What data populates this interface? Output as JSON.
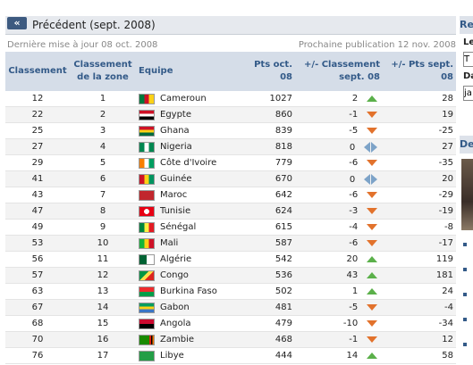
{
  "nav": {
    "prev_icon": "«",
    "prev_label": "Précédent (sept. 2008)"
  },
  "meta": {
    "updated": "Dernière mise à jour 08 oct. 2008",
    "next": "Prochaine publication 12 nov. 2008"
  },
  "headers": {
    "rank": "Classement",
    "zone_rank": "Classement de la zone",
    "team": "Equipe",
    "pts": "Pts oct. 08",
    "change": "+/- Classement sept. 08",
    "pts_change": "+/- Pts sept. 08"
  },
  "rows": [
    {
      "rank": "12",
      "zone": "1",
      "team": "Cameroun",
      "pts": "1027",
      "change": "2",
      "trend": "up",
      "pts_change": "28",
      "flag": "cm"
    },
    {
      "rank": "22",
      "zone": "2",
      "team": "Egypte",
      "pts": "860",
      "change": "-1",
      "trend": "down",
      "pts_change": "19",
      "flag": "eg"
    },
    {
      "rank": "25",
      "zone": "3",
      "team": "Ghana",
      "pts": "839",
      "change": "-5",
      "trend": "down",
      "pts_change": "-25",
      "flag": "gh"
    },
    {
      "rank": "27",
      "zone": "4",
      "team": "Nigeria",
      "pts": "818",
      "change": "0",
      "trend": "same",
      "pts_change": "27",
      "flag": "ng"
    },
    {
      "rank": "29",
      "zone": "5",
      "team": "Côte d'Ivoire",
      "pts": "779",
      "change": "-6",
      "trend": "down",
      "pts_change": "-35",
      "flag": "ci"
    },
    {
      "rank": "41",
      "zone": "6",
      "team": "Guinée",
      "pts": "670",
      "change": "0",
      "trend": "same",
      "pts_change": "20",
      "flag": "gn"
    },
    {
      "rank": "43",
      "zone": "7",
      "team": "Maroc",
      "pts": "642",
      "change": "-6",
      "trend": "down",
      "pts_change": "-29",
      "flag": "ma"
    },
    {
      "rank": "47",
      "zone": "8",
      "team": "Tunisie",
      "pts": "624",
      "change": "-3",
      "trend": "down",
      "pts_change": "-19",
      "flag": "tn"
    },
    {
      "rank": "49",
      "zone": "9",
      "team": "Sénégal",
      "pts": "615",
      "change": "-4",
      "trend": "down",
      "pts_change": "-8",
      "flag": "sn"
    },
    {
      "rank": "53",
      "zone": "10",
      "team": "Mali",
      "pts": "587",
      "change": "-6",
      "trend": "down",
      "pts_change": "-17",
      "flag": "ml"
    },
    {
      "rank": "56",
      "zone": "11",
      "team": "Algérie",
      "pts": "542",
      "change": "20",
      "trend": "up",
      "pts_change": "119",
      "flag": "dz"
    },
    {
      "rank": "57",
      "zone": "12",
      "team": "Congo",
      "pts": "536",
      "change": "43",
      "trend": "up",
      "pts_change": "181",
      "flag": "cg"
    },
    {
      "rank": "63",
      "zone": "13",
      "team": "Burkina Faso",
      "pts": "502",
      "change": "1",
      "trend": "up",
      "pts_change": "24",
      "flag": "bf"
    },
    {
      "rank": "67",
      "zone": "14",
      "team": "Gabon",
      "pts": "481",
      "change": "-5",
      "trend": "down",
      "pts_change": "-4",
      "flag": "ga"
    },
    {
      "rank": "68",
      "zone": "15",
      "team": "Angola",
      "pts": "479",
      "change": "-10",
      "trend": "down",
      "pts_change": "-34",
      "flag": "ao"
    },
    {
      "rank": "70",
      "zone": "16",
      "team": "Zambie",
      "pts": "468",
      "change": "-1",
      "trend": "down",
      "pts_change": "12",
      "flag": "zm"
    },
    {
      "rank": "76",
      "zone": "17",
      "team": "Libye",
      "pts": "444",
      "change": "14",
      "trend": "up",
      "pts_change": "58",
      "flag": "ly"
    }
  ],
  "sidebar": {
    "title": "Re",
    "label1": "Le",
    "field1": "T",
    "label2": "Da",
    "field2": "ja",
    "title2": "De"
  },
  "colors": {
    "up": "#5bb04a",
    "down": "#e2722c",
    "same": "#7da3c8",
    "header_bg": "#d5dde8",
    "header_text": "#335a88"
  }
}
